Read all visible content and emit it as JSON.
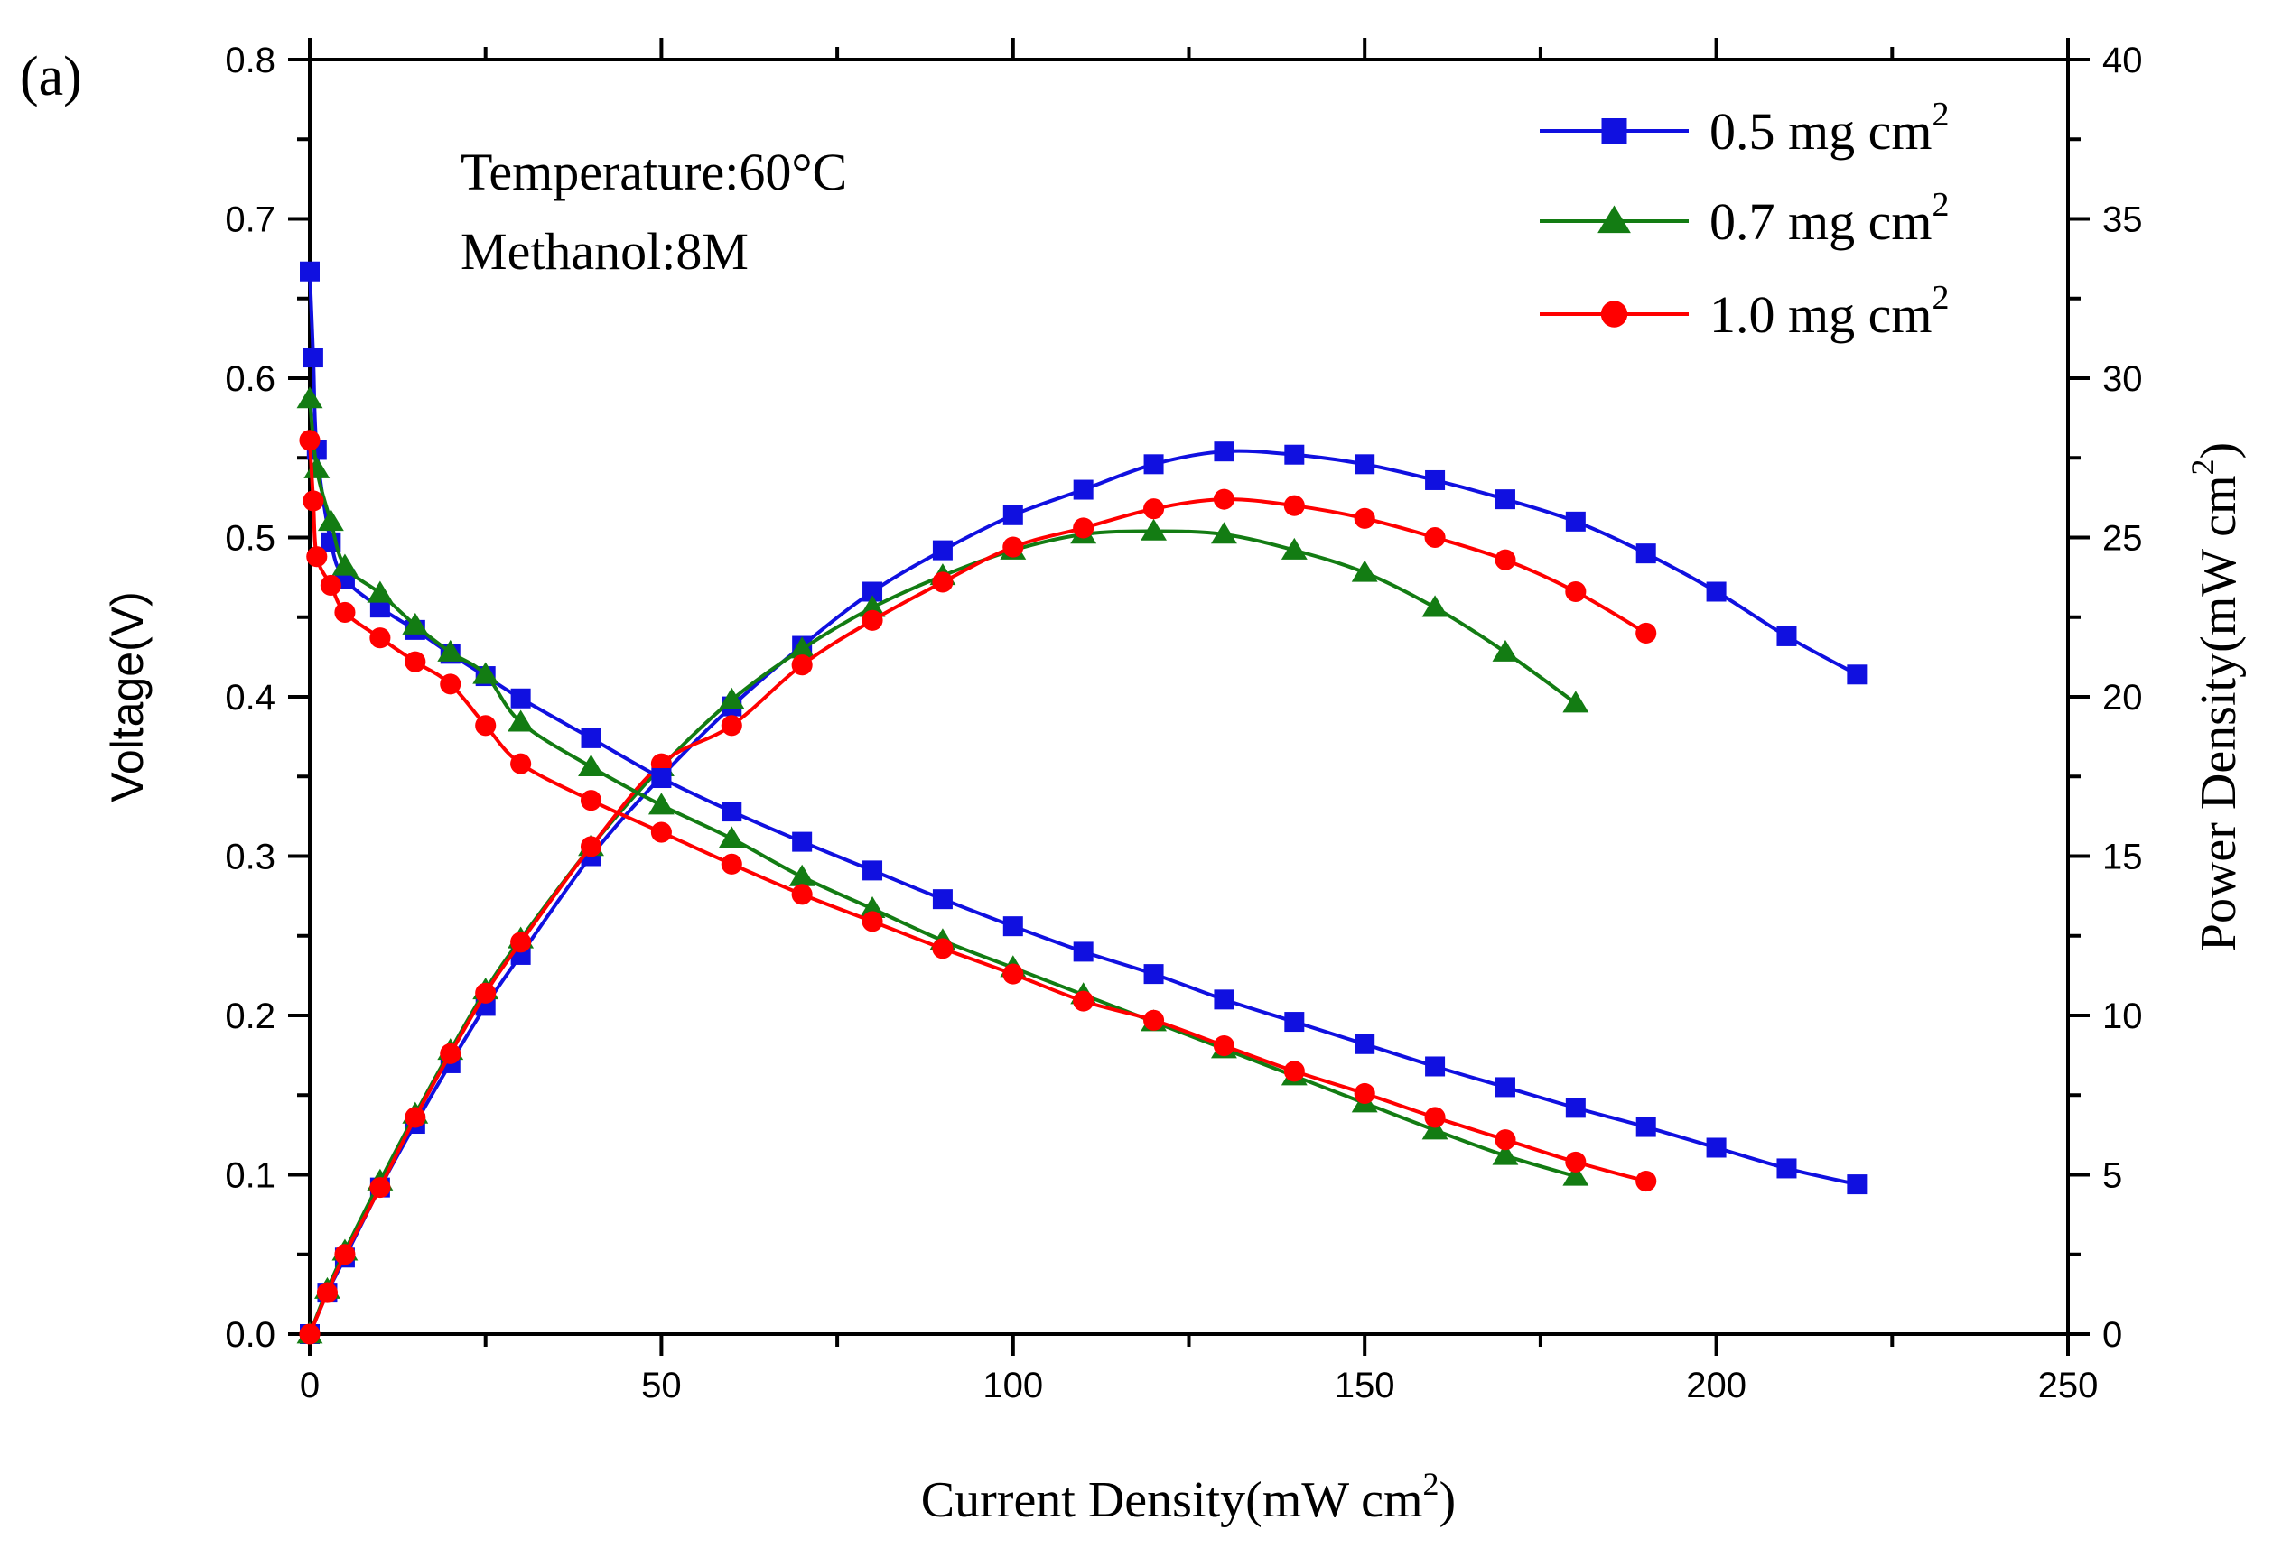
{
  "chart_data": {
    "type": "line",
    "panel_label": "(a)",
    "xlabel_main": "Current Density(mW cm",
    "xlabel_sup": "2",
    "xlabel_close": ")",
    "ylabel": "Voltage(V)",
    "y2label_main": "Power Density(mW cm",
    "y2label_sup": "2",
    "y2label_close": ")",
    "xlim": [
      0,
      250
    ],
    "ylim": [
      0,
      0.8
    ],
    "y2lim": [
      0,
      40
    ],
    "x_ticks": [
      "0",
      "50",
      "100",
      "150",
      "200",
      "250"
    ],
    "y_ticks": [
      "0.0",
      "0.1",
      "0.2",
      "0.3",
      "0.4",
      "0.5",
      "0.6",
      "0.7",
      "0.8"
    ],
    "y2_ticks": [
      "0",
      "5",
      "10",
      "15",
      "20",
      "25",
      "30",
      "35",
      "40"
    ],
    "annotations": [
      "Temperature:60°C",
      "Methanol:8M"
    ],
    "legend_position": "top-right",
    "grid": false,
    "series": [
      {
        "name": "0.5 mg cm",
        "legend_sup": "2",
        "color": "#1010e0",
        "marker": "square",
        "voltage": {
          "x": [
            0,
            0.5,
            1,
            3,
            5,
            10,
            15,
            20,
            25,
            30,
            40,
            50,
            60,
            70,
            80,
            90,
            100,
            110,
            120,
            130,
            140,
            150,
            160,
            170,
            180,
            190,
            200,
            210,
            220
          ],
          "y": [
            0.667,
            0.613,
            0.555,
            0.497,
            0.474,
            0.456,
            0.442,
            0.427,
            0.413,
            0.399,
            0.374,
            0.349,
            0.328,
            0.309,
            0.291,
            0.273,
            0.256,
            0.24,
            0.226,
            0.21,
            0.196,
            0.182,
            0.168,
            0.155,
            0.142,
            0.13,
            0.117,
            0.104,
            0.094
          ]
        },
        "power": {
          "x": [
            0,
            2.5,
            5,
            10,
            15,
            20,
            25,
            30,
            40,
            50,
            60,
            70,
            80,
            90,
            100,
            110,
            120,
            130,
            140,
            150,
            160,
            170,
            180,
            190,
            200,
            210,
            220
          ],
          "y": [
            0,
            1.3,
            2.4,
            4.6,
            6.6,
            8.5,
            10.3,
            11.9,
            15.0,
            17.5,
            19.7,
            21.6,
            23.3,
            24.6,
            25.7,
            26.5,
            27.3,
            27.7,
            27.6,
            27.3,
            26.8,
            26.2,
            25.5,
            24.5,
            23.3,
            21.9,
            20.7
          ]
        }
      },
      {
        "name": "0.7 mg cm",
        "legend_sup": "2",
        "color": "#137c13",
        "marker": "triangle",
        "voltage": {
          "x": [
            0,
            1,
            3,
            5,
            10,
            15,
            20,
            25,
            30,
            40,
            50,
            60,
            70,
            80,
            90,
            100,
            110,
            120,
            130,
            140,
            150,
            160,
            170,
            180
          ],
          "y": [
            0.587,
            0.543,
            0.51,
            0.482,
            0.465,
            0.445,
            0.428,
            0.414,
            0.384,
            0.356,
            0.332,
            0.311,
            0.287,
            0.267,
            0.247,
            0.23,
            0.213,
            0.196,
            0.179,
            0.162,
            0.145,
            0.128,
            0.112,
            0.099
          ]
        },
        "power": {
          "x": [
            0,
            2.5,
            5,
            10,
            15,
            20,
            25,
            30,
            40,
            50,
            60,
            70,
            80,
            90,
            100,
            110,
            120,
            130,
            140,
            150,
            160,
            170,
            180
          ],
          "y": [
            0,
            1.4,
            2.6,
            4.8,
            6.9,
            8.9,
            10.8,
            12.4,
            15.3,
            17.8,
            19.9,
            21.5,
            22.8,
            23.8,
            24.6,
            25.1,
            25.2,
            25.1,
            24.6,
            23.9,
            22.8,
            21.4,
            19.8
          ]
        }
      },
      {
        "name": "1.0 mg cm",
        "legend_sup": "2",
        "color": "#ff0000",
        "marker": "circle",
        "voltage": {
          "x": [
            0,
            0.5,
            1,
            3,
            5,
            10,
            15,
            20,
            25,
            30,
            40,
            50,
            60,
            70,
            80,
            90,
            100,
            110,
            120,
            130,
            140,
            150,
            160,
            170,
            180,
            190
          ],
          "y": [
            0.561,
            0.523,
            0.488,
            0.47,
            0.453,
            0.437,
            0.422,
            0.408,
            0.382,
            0.358,
            0.335,
            0.315,
            0.295,
            0.276,
            0.259,
            0.242,
            0.226,
            0.209,
            0.197,
            0.181,
            0.165,
            0.151,
            0.136,
            0.122,
            0.108,
            0.096
          ]
        },
        "power": {
          "x": [
            0,
            2.5,
            5,
            10,
            15,
            20,
            25,
            30,
            40,
            50,
            60,
            70,
            80,
            90,
            100,
            110,
            120,
            130,
            140,
            150,
            160,
            170,
            180,
            190
          ],
          "y": [
            0,
            1.3,
            2.5,
            4.6,
            6.8,
            8.8,
            10.7,
            12.3,
            15.3,
            17.9,
            19.1,
            21.0,
            22.4,
            23.6,
            24.7,
            25.3,
            25.9,
            26.2,
            26.0,
            25.6,
            25.0,
            24.3,
            23.3,
            22.0
          ]
        }
      }
    ]
  }
}
